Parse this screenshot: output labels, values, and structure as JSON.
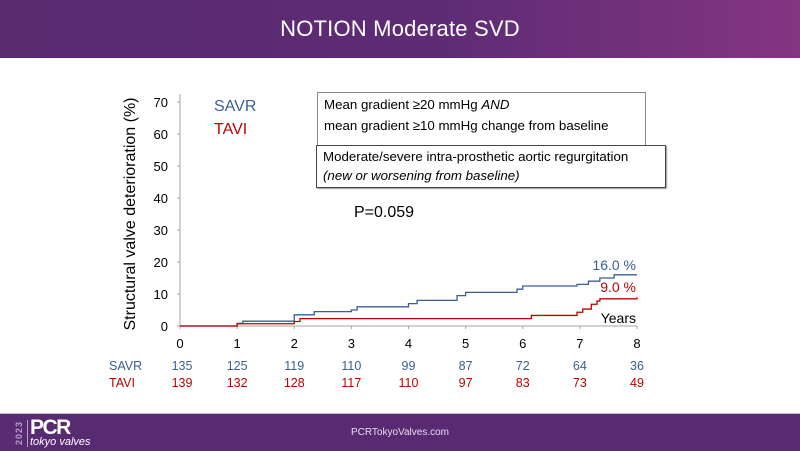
{
  "header": {
    "title": "NOTION Moderate SVD"
  },
  "legend": [
    {
      "label": "SAVR",
      "color": "#3a5f94"
    },
    {
      "label": "TAVI",
      "color": "#c00000"
    }
  ],
  "definition_box_1": {
    "line1_prefix": "Mean gradient ≥20 mmHg ",
    "line1_italic": "AND",
    "line2": "mean gradient ≥10 mmHg change from baseline"
  },
  "definition_box_2": {
    "line1": "Moderate/severe intra-prosthetic aortic regurgitation",
    "line2": "(new or worsening from baseline)"
  },
  "p_value": "P=0.059",
  "risk_table": {
    "rows": [
      {
        "label": "SAVR",
        "color": "#3a5f94",
        "values": [
          "135",
          "125",
          "119",
          "110",
          "99",
          "87",
          "72",
          "64",
          "36"
        ]
      },
      {
        "label": "TAVI",
        "color": "#c00000",
        "values": [
          "139",
          "132",
          "128",
          "117",
          "110",
          "97",
          "83",
          "73",
          "49"
        ]
      }
    ]
  },
  "chart_data": {
    "type": "line",
    "step": true,
    "title": "NOTION Moderate SVD",
    "xlabel": "Years",
    "ylabel": "Structural valve deterioration (%)",
    "xlim": [
      0,
      8
    ],
    "ylim": [
      0,
      70
    ],
    "xticks": [
      "0",
      "1",
      "2",
      "3",
      "4",
      "5",
      "6",
      "7",
      "8"
    ],
    "yticks": [
      "0",
      "10",
      "20",
      "30",
      "40",
      "50",
      "60",
      "70"
    ],
    "grid": false,
    "legend_position": "top-left",
    "series": [
      {
        "name": "SAVR",
        "color": "#3a5f94",
        "end_label": "16.0 %",
        "x": [
          0,
          1.0,
          1.1,
          2.0,
          2.35,
          3.0,
          3.1,
          4.0,
          4.15,
          4.85,
          5.0,
          5.9,
          6.0,
          6.95,
          7.15,
          7.35,
          7.6,
          8.0
        ],
        "y": [
          0,
          0.8,
          1.5,
          3.5,
          4.5,
          5.0,
          6.0,
          7.0,
          8.0,
          9.5,
          10.5,
          11.5,
          12.5,
          13.0,
          14.0,
          15.0,
          16.0,
          16.0
        ]
      },
      {
        "name": "TAVI",
        "color": "#c00000",
        "end_label": "9.0 %",
        "x": [
          0,
          1.0,
          2.0,
          2.1,
          6.1,
          6.15,
          6.95,
          7.05,
          7.2,
          7.3,
          7.35,
          8.0
        ],
        "y": [
          0,
          0.7,
          1.4,
          2.3,
          2.3,
          3.3,
          4.3,
          5.3,
          6.8,
          7.8,
          8.5,
          9.0
        ]
      }
    ]
  },
  "footer": {
    "url": "PCRTokyoValves.com",
    "logo_year": "2023",
    "logo_brand": "PCR",
    "logo_sub": "tokyo valves"
  }
}
